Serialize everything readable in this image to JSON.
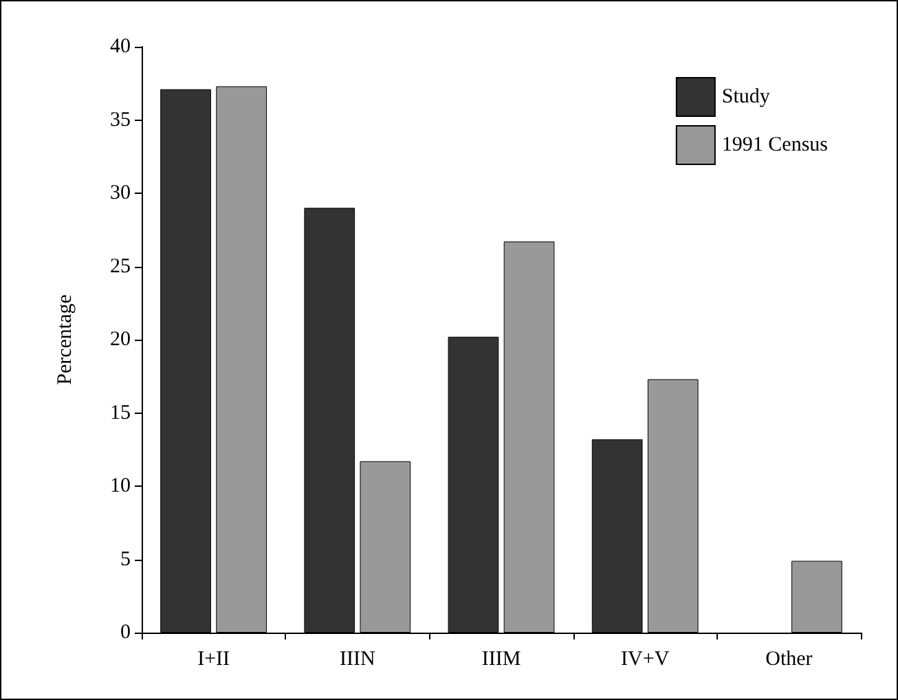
{
  "chart_data": {
    "type": "bar",
    "ylabel": "Percentage",
    "categories": [
      "I+II",
      "IIIN",
      "IIIM",
      "IV+V",
      "Other"
    ],
    "series": [
      {
        "name": "Study",
        "color": "#333333",
        "values": [
          37.1,
          29.0,
          20.2,
          13.2,
          null
        ]
      },
      {
        "name": "1991 Census",
        "color": "#999999",
        "values": [
          37.3,
          11.7,
          26.7,
          17.3,
          4.9
        ]
      }
    ],
    "ylim": [
      0,
      40
    ],
    "yticks": [
      0,
      5,
      10,
      15,
      20,
      25,
      30,
      35,
      40
    ],
    "grid": false,
    "legend": "top right"
  }
}
